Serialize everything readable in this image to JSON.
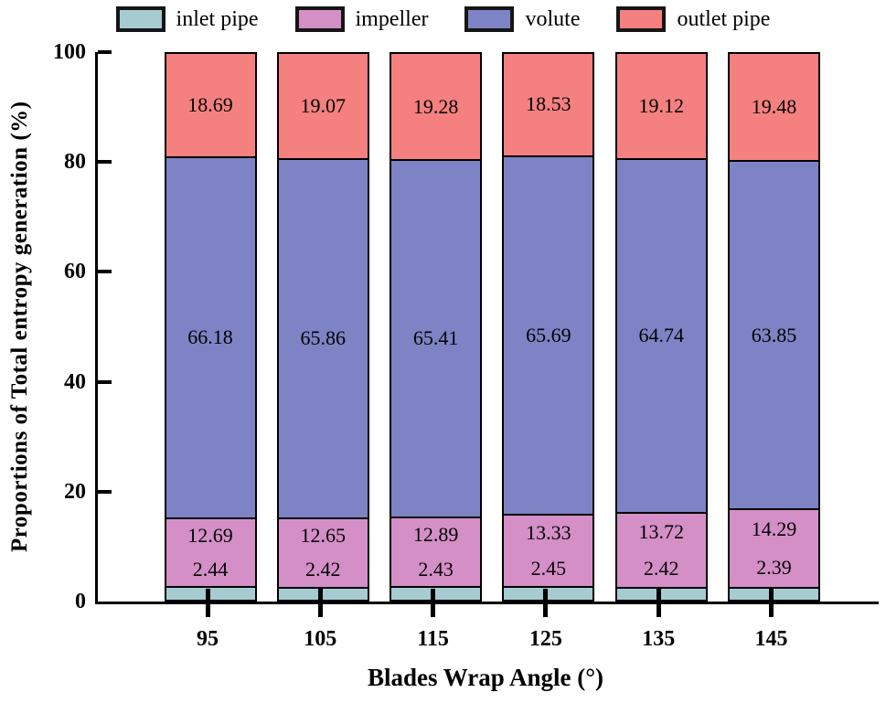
{
  "figure": {
    "y_axis_title": "Proportions of Total entropy generation (%)",
    "x_axis_title": "Blades Wrap Angle (°)"
  },
  "chart_data": {
    "type": "bar",
    "stacked": true,
    "title": "",
    "xlabel": "Blades Wrap Angle (°)",
    "ylabel": "Proportions of Total entropy generation (%)",
    "categories": [
      "95",
      "105",
      "115",
      "125",
      "135",
      "145"
    ],
    "y_ticks": [
      0,
      20,
      40,
      60,
      80,
      100
    ],
    "ylim": [
      0,
      100
    ],
    "grid": false,
    "legend_position": "top",
    "value_label_decimals": 2,
    "series": [
      {
        "name": "inlet pipe",
        "color": "#a6cbd1",
        "values": [
          2.44,
          2.42,
          2.43,
          2.45,
          2.42,
          2.39
        ]
      },
      {
        "name": "impeller",
        "color": "#d48fc7",
        "values": [
          12.69,
          12.65,
          12.89,
          13.33,
          13.72,
          14.29
        ]
      },
      {
        "name": "volute",
        "color": "#7d83c4",
        "values": [
          66.18,
          65.86,
          65.41,
          65.69,
          64.74,
          63.85
        ]
      },
      {
        "name": "outlet pipe",
        "color": "#f58080",
        "values": [
          18.69,
          19.07,
          19.28,
          18.53,
          19.12,
          19.48
        ]
      }
    ]
  }
}
